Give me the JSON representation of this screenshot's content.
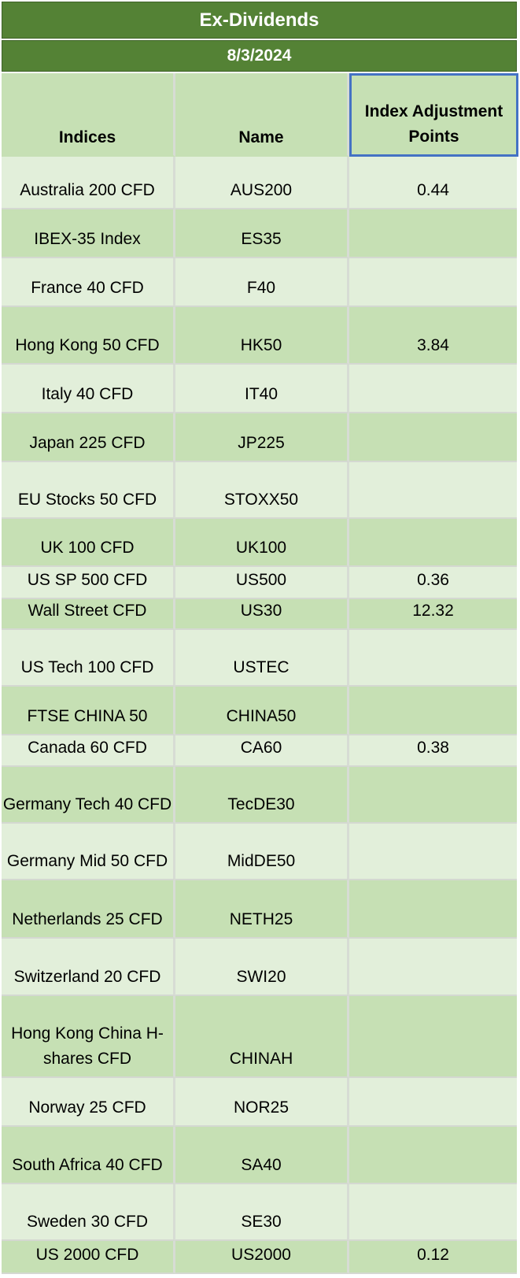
{
  "title": "Ex-Dividends",
  "date": "8/3/2024",
  "columns": [
    "Indices",
    "Name",
    "Index Adjustment Points"
  ],
  "rows": [
    {
      "index": "Australia 200 CFD",
      "name": "AUS200",
      "points": "0.44"
    },
    {
      "index": "IBEX-35 Index",
      "name": "ES35",
      "points": ""
    },
    {
      "index": "France 40 CFD",
      "name": "F40",
      "points": ""
    },
    {
      "index": "Hong Kong 50 CFD",
      "name": "HK50",
      "points": "3.84"
    },
    {
      "index": "Italy 40 CFD",
      "name": "IT40",
      "points": ""
    },
    {
      "index": "Japan 225 CFD",
      "name": "JP225",
      "points": ""
    },
    {
      "index": "EU Stocks 50 CFD",
      "name": "STOXX50",
      "points": ""
    },
    {
      "index": "UK 100 CFD",
      "name": "UK100",
      "points": ""
    },
    {
      "index": "US SP 500 CFD",
      "name": "US500",
      "points": "0.36"
    },
    {
      "index": "Wall Street CFD",
      "name": "US30",
      "points": "12.32"
    },
    {
      "index": "US Tech 100 CFD",
      "name": "USTEC",
      "points": ""
    },
    {
      "index": "FTSE CHINA 50",
      "name": "CHINA50",
      "points": ""
    },
    {
      "index": "Canada 60 CFD",
      "name": "CA60",
      "points": "0.38"
    },
    {
      "index": "Germany Tech 40 CFD",
      "name": "TecDE30",
      "points": ""
    },
    {
      "index": "Germany Mid 50 CFD",
      "name": "MidDE50",
      "points": ""
    },
    {
      "index": "Netherlands 25 CFD",
      "name": "NETH25",
      "points": ""
    },
    {
      "index": "Switzerland 20 CFD",
      "name": "SWI20",
      "points": ""
    },
    {
      "index": "Hong Kong China H-shares CFD",
      "name": "CHINAH",
      "points": ""
    },
    {
      "index": "Norway 25 CFD",
      "name": "NOR25",
      "points": ""
    },
    {
      "index": "South Africa 40 CFD",
      "name": "SA40",
      "points": ""
    },
    {
      "index": "Sweden 30 CFD",
      "name": "SE30",
      "points": ""
    },
    {
      "index": "US 2000 CFD",
      "name": "US2000",
      "points": "0.12"
    }
  ],
  "colors": {
    "band": "#548235",
    "light_row": "#e2efda",
    "dark_row": "#c6e0b4",
    "selection": "#4472c4"
  }
}
